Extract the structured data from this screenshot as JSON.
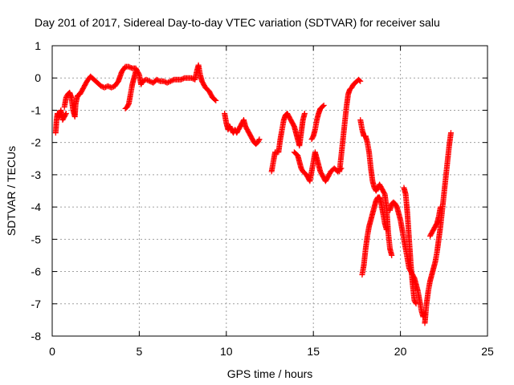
{
  "chart_data": {
    "type": "scatter",
    "title": "Day 201 of 2017, Sidereal Day-to-day VTEC variation (SDTVAR) for receiver salu",
    "xlabel": "GPS time / hours",
    "ylabel": "SDTVAR / TECUs",
    "xlim": [
      0,
      25
    ],
    "ylim": [
      -8,
      1
    ],
    "xticks": [
      "0",
      "5",
      "10",
      "15",
      "20",
      "25"
    ],
    "yticks": [
      "1",
      "0",
      "-1",
      "-2",
      "-3",
      "-4",
      "-5",
      "-6",
      "-7",
      "-8"
    ],
    "grid": true,
    "marker": "plus",
    "color": "#ff0000",
    "series": [
      {
        "points": [
          [
            0.2,
            -1.7
          ],
          [
            0.25,
            -1.3
          ],
          [
            0.3,
            -1.1
          ],
          [
            0.4,
            -1.2
          ],
          [
            0.5,
            -1.0
          ],
          [
            0.6,
            -1.3
          ],
          [
            0.7,
            -1.2
          ],
          [
            0.8,
            -1.1
          ]
        ]
      },
      {
        "points": [
          [
            0.7,
            -0.9
          ],
          [
            0.8,
            -0.6
          ],
          [
            0.9,
            -0.5
          ],
          [
            1.0,
            -0.45
          ],
          [
            1.1,
            -0.6
          ],
          [
            1.2,
            -1.0
          ],
          [
            1.3,
            -1.2
          ],
          [
            1.35,
            -0.8
          ],
          [
            1.45,
            -0.55
          ],
          [
            1.6,
            -0.5
          ],
          [
            1.8,
            -0.3
          ],
          [
            2.0,
            -0.1
          ],
          [
            2.2,
            0.05
          ],
          [
            2.4,
            -0.05
          ],
          [
            2.6,
            -0.15
          ],
          [
            2.8,
            -0.25
          ],
          [
            3.0,
            -0.3
          ],
          [
            3.2,
            -0.25
          ],
          [
            3.4,
            -0.3
          ],
          [
            3.6,
            -0.25
          ],
          [
            3.8,
            -0.1
          ],
          [
            4.0,
            0.2
          ],
          [
            4.2,
            0.35
          ],
          [
            4.4,
            0.35
          ],
          [
            4.6,
            0.3
          ],
          [
            4.8,
            0.3
          ],
          [
            5.0,
            0.1
          ],
          [
            5.1,
            -0.2
          ],
          [
            5.2,
            -0.1
          ],
          [
            5.4,
            -0.05
          ],
          [
            5.6,
            -0.1
          ],
          [
            5.8,
            -0.15
          ],
          [
            6.0,
            -0.05
          ],
          [
            6.2,
            -0.1
          ],
          [
            6.4,
            -0.1
          ],
          [
            6.6,
            -0.15
          ],
          [
            6.8,
            -0.1
          ],
          [
            7.0,
            -0.05
          ],
          [
            7.2,
            -0.05
          ],
          [
            7.4,
            -0.05
          ],
          [
            7.6,
            0.0
          ],
          [
            7.8,
            0.0
          ],
          [
            8.0,
            0.0
          ],
          [
            8.2,
            -0.05
          ],
          [
            8.3,
            0.2
          ],
          [
            8.4,
            0.4
          ],
          [
            8.5,
            0.1
          ],
          [
            8.6,
            -0.1
          ],
          [
            8.8,
            -0.3
          ],
          [
            9.0,
            -0.4
          ],
          [
            9.2,
            -0.6
          ],
          [
            9.4,
            -0.7
          ]
        ]
      },
      {
        "points": [
          [
            4.2,
            -0.95
          ],
          [
            4.3,
            -0.9
          ],
          [
            4.4,
            -0.8
          ],
          [
            4.5,
            -0.5
          ],
          [
            4.6,
            -0.2
          ],
          [
            4.7,
            0.0
          ],
          [
            4.8,
            0.2
          ]
        ]
      },
      {
        "points": [
          [
            9.9,
            -1.1
          ],
          [
            10.0,
            -1.4
          ],
          [
            10.1,
            -1.6
          ],
          [
            10.2,
            -1.5
          ],
          [
            10.3,
            -1.6
          ],
          [
            10.4,
            -1.7
          ],
          [
            10.5,
            -1.6
          ],
          [
            10.6,
            -1.7
          ],
          [
            10.7,
            -1.6
          ],
          [
            10.8,
            -1.5
          ],
          [
            10.9,
            -1.4
          ],
          [
            11.0,
            -1.3
          ],
          [
            11.1,
            -1.5
          ],
          [
            11.2,
            -1.6
          ],
          [
            11.3,
            -1.7
          ],
          [
            11.4,
            -1.8
          ],
          [
            11.5,
            -1.9
          ],
          [
            11.6,
            -2.0
          ],
          [
            11.7,
            -2.05
          ],
          [
            11.8,
            -2.0
          ],
          [
            11.9,
            -1.9
          ]
        ]
      },
      {
        "points": [
          [
            12.6,
            -2.9
          ],
          [
            12.7,
            -2.6
          ],
          [
            12.8,
            -2.3
          ],
          [
            13.0,
            -2.3
          ],
          [
            13.1,
            -1.9
          ],
          [
            13.2,
            -1.6
          ],
          [
            13.3,
            -1.3
          ],
          [
            13.4,
            -1.15
          ],
          [
            13.5,
            -1.1
          ],
          [
            13.7,
            -1.3
          ],
          [
            13.9,
            -1.5
          ],
          [
            14.0,
            -1.7
          ],
          [
            14.1,
            -1.9
          ],
          [
            14.2,
            -2.1
          ],
          [
            14.3,
            -1.7
          ],
          [
            14.4,
            -1.3
          ],
          [
            14.5,
            -1.1
          ]
        ]
      },
      {
        "points": [
          [
            13.9,
            -2.3
          ],
          [
            14.0,
            -2.35
          ],
          [
            14.1,
            -2.4
          ],
          [
            14.2,
            -2.6
          ],
          [
            14.3,
            -2.8
          ],
          [
            14.4,
            -2.9
          ],
          [
            14.6,
            -3.0
          ],
          [
            14.8,
            -3.2
          ],
          [
            14.9,
            -2.9
          ],
          [
            15.0,
            -2.6
          ],
          [
            15.1,
            -2.3
          ],
          [
            15.2,
            -2.5
          ],
          [
            15.3,
            -2.7
          ],
          [
            15.4,
            -2.9
          ],
          [
            15.5,
            -3.0
          ],
          [
            15.6,
            -3.1
          ],
          [
            15.7,
            -3.2
          ],
          [
            15.8,
            -3.1
          ],
          [
            15.9,
            -3.0
          ],
          [
            16.0,
            -2.9
          ],
          [
            16.2,
            -2.8
          ],
          [
            16.4,
            -2.9
          ],
          [
            16.6,
            -2.8
          ]
        ]
      },
      {
        "points": [
          [
            14.9,
            -1.9
          ],
          [
            15.0,
            -1.8
          ],
          [
            15.1,
            -1.6
          ],
          [
            15.2,
            -1.3
          ],
          [
            15.3,
            -1.1
          ],
          [
            15.4,
            -0.95
          ],
          [
            15.5,
            -0.9
          ],
          [
            15.6,
            -0.85
          ]
        ]
      },
      {
        "points": [
          [
            16.5,
            -2.9
          ],
          [
            16.6,
            -2.4
          ],
          [
            16.7,
            -1.9
          ],
          [
            16.8,
            -1.4
          ],
          [
            16.9,
            -0.9
          ],
          [
            17.0,
            -0.5
          ],
          [
            17.1,
            -0.35
          ],
          [
            17.2,
            -0.3
          ],
          [
            17.3,
            -0.2
          ],
          [
            17.4,
            -0.15
          ],
          [
            17.5,
            -0.1
          ],
          [
            17.6,
            -0.05
          ],
          [
            17.7,
            -0.1
          ]
        ]
      },
      {
        "points": [
          [
            17.7,
            -1.3
          ],
          [
            17.8,
            -1.6
          ],
          [
            17.9,
            -1.8
          ],
          [
            18.0,
            -1.8
          ],
          [
            18.1,
            -2.0
          ],
          [
            18.2,
            -2.3
          ],
          [
            18.3,
            -2.8
          ],
          [
            18.4,
            -3.2
          ],
          [
            18.5,
            -3.4
          ],
          [
            18.6,
            -3.5
          ],
          [
            18.7,
            -3.4
          ],
          [
            18.8,
            -3.3
          ],
          [
            18.9,
            -3.4
          ],
          [
            19.0,
            -3.5
          ],
          [
            19.1,
            -3.6
          ],
          [
            19.2,
            -4.0
          ],
          [
            19.3,
            -4.8
          ],
          [
            19.4,
            -5.3
          ],
          [
            19.5,
            -5.5
          ]
        ]
      },
      {
        "points": [
          [
            17.8,
            -6.1
          ],
          [
            17.9,
            -5.8
          ],
          [
            18.0,
            -5.3
          ],
          [
            18.1,
            -4.9
          ],
          [
            18.2,
            -4.6
          ],
          [
            18.3,
            -4.4
          ],
          [
            18.4,
            -4.2
          ],
          [
            18.5,
            -4.0
          ],
          [
            18.6,
            -3.8
          ],
          [
            18.7,
            -3.7
          ],
          [
            18.8,
            -3.7
          ],
          [
            18.9,
            -3.9
          ],
          [
            19.0,
            -4.2
          ],
          [
            19.1,
            -4.5
          ],
          [
            19.2,
            -4.7
          ]
        ]
      },
      {
        "points": [
          [
            19.4,
            -4.1
          ],
          [
            19.5,
            -3.9
          ],
          [
            19.6,
            -3.85
          ],
          [
            19.7,
            -3.9
          ],
          [
            19.8,
            -4.0
          ],
          [
            19.9,
            -4.2
          ],
          [
            20.0,
            -4.4
          ],
          [
            20.1,
            -4.7
          ],
          [
            20.2,
            -5.0
          ],
          [
            20.3,
            -5.3
          ],
          [
            20.4,
            -5.6
          ],
          [
            20.5,
            -5.9
          ],
          [
            20.6,
            -6.0
          ],
          [
            20.7,
            -6.1
          ],
          [
            20.8,
            -6.2
          ],
          [
            20.9,
            -6.4
          ],
          [
            21.0,
            -6.6
          ],
          [
            21.1,
            -6.9
          ],
          [
            21.2,
            -7.2
          ],
          [
            21.3,
            -7.4
          ],
          [
            21.4,
            -7.3
          ]
        ]
      },
      {
        "points": [
          [
            20.2,
            -3.4
          ],
          [
            20.3,
            -3.6
          ],
          [
            20.4,
            -4.2
          ],
          [
            20.5,
            -5.0
          ],
          [
            20.6,
            -5.8
          ],
          [
            20.7,
            -6.4
          ],
          [
            20.8,
            -6.9
          ],
          [
            20.9,
            -7.0
          ]
        ]
      },
      {
        "points": [
          [
            21.4,
            -7.6
          ],
          [
            21.5,
            -7.0
          ],
          [
            21.6,
            -6.6
          ],
          [
            21.7,
            -6.3
          ],
          [
            21.8,
            -6.1
          ],
          [
            21.9,
            -5.9
          ],
          [
            22.0,
            -5.7
          ],
          [
            22.1,
            -5.4
          ],
          [
            22.2,
            -5.0
          ],
          [
            22.3,
            -4.6
          ],
          [
            22.4,
            -4.1
          ],
          [
            22.5,
            -3.6
          ],
          [
            22.6,
            -3.1
          ],
          [
            22.7,
            -2.6
          ],
          [
            22.8,
            -2.1
          ],
          [
            22.9,
            -1.7
          ]
        ]
      },
      {
        "points": [
          [
            21.7,
            -4.9
          ],
          [
            21.8,
            -4.8
          ],
          [
            21.9,
            -4.7
          ],
          [
            22.0,
            -4.6
          ],
          [
            22.1,
            -4.5
          ],
          [
            22.2,
            -4.3
          ],
          [
            22.3,
            -4.0
          ]
        ]
      }
    ]
  }
}
